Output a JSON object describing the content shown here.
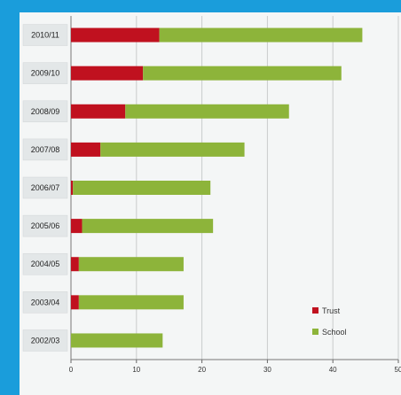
{
  "chart_data": {
    "type": "bar",
    "orientation": "horizontal",
    "stacked": true,
    "categories": [
      "2010/11",
      "2009/10",
      "2008/09",
      "2007/08",
      "2006/07",
      "2005/06",
      "2004/05",
      "2003/04",
      "2002/03"
    ],
    "series": [
      {
        "name": "Trust",
        "color": "#c0111f",
        "values": [
          13.5,
          11,
          8.3,
          4.5,
          0.3,
          1.7,
          1.2,
          1.2,
          0
        ]
      },
      {
        "name": "School",
        "color": "#8db43a",
        "values": [
          31,
          30.3,
          25,
          22,
          21,
          20,
          16,
          16,
          14
        ]
      }
    ],
    "xlim": [
      0,
      50
    ],
    "xticks": [
      "0",
      "10",
      "20",
      "30",
      "40",
      "50"
    ],
    "grid": "vertical",
    "legend": "bottom-right",
    "title": "",
    "xlabel": "",
    "ylabel": ""
  },
  "legend": {
    "trust_label": "Trust",
    "school_label": "School"
  }
}
